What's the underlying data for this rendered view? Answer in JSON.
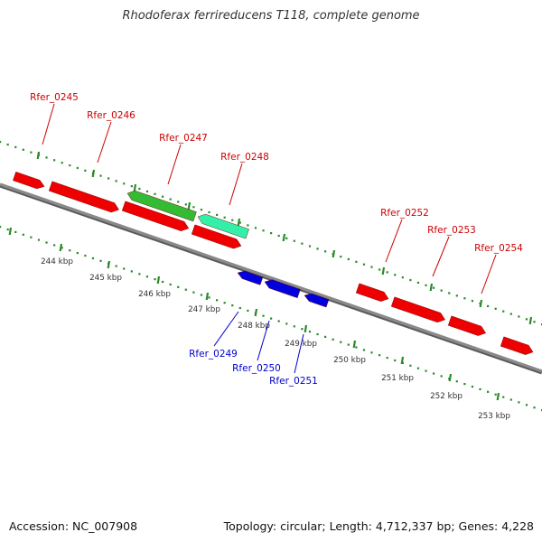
{
  "title": "Rhodoferax ferrireducens T118, complete genome",
  "footer": {
    "accession": "Accession: NC_007908",
    "topology": "Topology: circular; Length: 4,712,337 bp; Genes: 4,228"
  },
  "colors": {
    "background": "#ffffff",
    "backbone": "#8a8a8a",
    "tick": "#2a8a2a",
    "forward_gene": "#ee0000",
    "reverse_gene": "#0000dd",
    "highlight_1": "#33bb33",
    "highlight_2": "#33f0a8",
    "forward_label": "#cc0000",
    "reverse_label": "#0000cc",
    "scale_label": "#333333"
  },
  "scale_labels": [
    "244 kbp",
    "245 kbp",
    "246 kbp",
    "247 kbp",
    "248 kbp",
    "249 kbp",
    "250 kbp",
    "251 kbp",
    "252 kbp",
    "253 kbp"
  ],
  "forward_labels": [
    "Rfer_0245",
    "Rfer_0246",
    "Rfer_0247",
    "Rfer_0248",
    "Rfer_0252",
    "Rfer_0253",
    "Rfer_0254"
  ],
  "reverse_labels": [
    "Rfer_0249",
    "Rfer_0250",
    "Rfer_0251"
  ]
}
